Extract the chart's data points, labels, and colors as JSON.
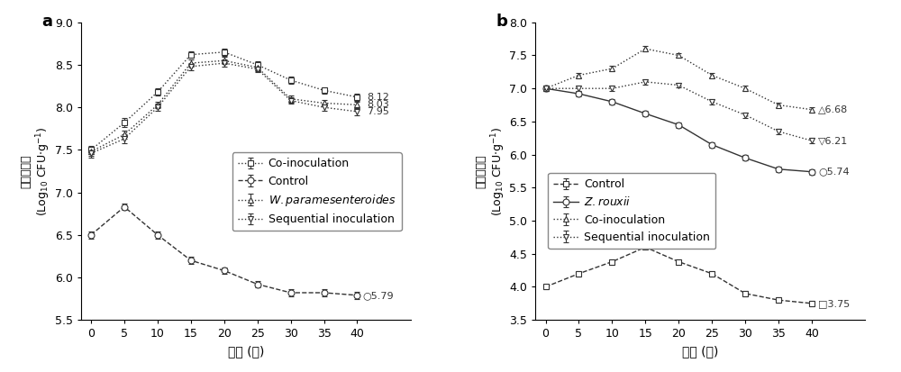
{
  "panel_a": {
    "x": [
      0,
      5,
      10,
      15,
      20,
      25,
      30,
      35,
      40
    ],
    "co_inoculation": [
      7.5,
      7.82,
      8.18,
      8.62,
      8.65,
      8.5,
      8.32,
      8.2,
      8.12
    ],
    "co_inoculation_err": [
      0.05,
      0.05,
      0.04,
      0.04,
      0.04,
      0.04,
      0.04,
      0.04,
      0.04
    ],
    "control": [
      6.5,
      6.83,
      6.5,
      6.2,
      6.08,
      5.92,
      5.82,
      5.82,
      5.79
    ],
    "control_err": [
      0.04,
      0.04,
      0.04,
      0.04,
      0.04,
      0.04,
      0.04,
      0.04,
      0.04
    ],
    "w_param": [
      7.48,
      7.68,
      8.03,
      8.52,
      8.55,
      8.47,
      8.1,
      8.05,
      8.03
    ],
    "w_param_err": [
      0.05,
      0.05,
      0.04,
      0.04,
      0.04,
      0.04,
      0.04,
      0.04,
      0.04
    ],
    "sequential": [
      7.46,
      7.63,
      8.0,
      8.48,
      8.52,
      8.45,
      8.08,
      8.0,
      7.95
    ],
    "sequential_err": [
      0.05,
      0.05,
      0.04,
      0.04,
      0.04,
      0.04,
      0.04,
      0.04,
      0.04
    ],
    "ylim": [
      5.5,
      9.0
    ],
    "yticks": [
      5.5,
      6.0,
      6.5,
      7.0,
      7.5,
      8.0,
      8.5,
      9.0
    ],
    "panel_label": "a"
  },
  "panel_b": {
    "x": [
      0,
      5,
      10,
      15,
      20,
      25,
      30,
      35,
      40
    ],
    "control": [
      4.0,
      4.2,
      4.38,
      4.6,
      4.38,
      4.2,
      3.9,
      3.8,
      3.75
    ],
    "control_err": [
      0.04,
      0.04,
      0.04,
      0.04,
      0.04,
      0.04,
      0.04,
      0.04,
      0.04
    ],
    "z_rouxii": [
      7.0,
      6.92,
      6.8,
      6.62,
      6.45,
      6.15,
      5.95,
      5.78,
      5.74
    ],
    "z_rouxii_err": [
      0.04,
      0.04,
      0.04,
      0.04,
      0.04,
      0.04,
      0.04,
      0.04,
      0.04
    ],
    "co_inoculation": [
      7.0,
      7.2,
      7.3,
      7.6,
      7.5,
      7.2,
      7.0,
      6.75,
      6.68
    ],
    "co_inoculation_err": [
      0.04,
      0.04,
      0.04,
      0.04,
      0.04,
      0.04,
      0.04,
      0.04,
      0.04
    ],
    "sequential": [
      7.0,
      7.0,
      7.0,
      7.1,
      7.05,
      6.8,
      6.6,
      6.35,
      6.21
    ],
    "sequential_err": [
      0.04,
      0.04,
      0.04,
      0.04,
      0.04,
      0.04,
      0.04,
      0.04,
      0.04
    ],
    "ylim": [
      3.5,
      8.0
    ],
    "yticks": [
      3.5,
      4.0,
      4.5,
      5.0,
      5.5,
      6.0,
      6.5,
      7.0,
      7.5,
      8.0
    ],
    "panel_label": "b"
  },
  "line_color": "#333333",
  "fontsize": 10,
  "legend_fontsize": 9,
  "xlabel": "时间 (天)",
  "ylabel": "活细胞计数"
}
